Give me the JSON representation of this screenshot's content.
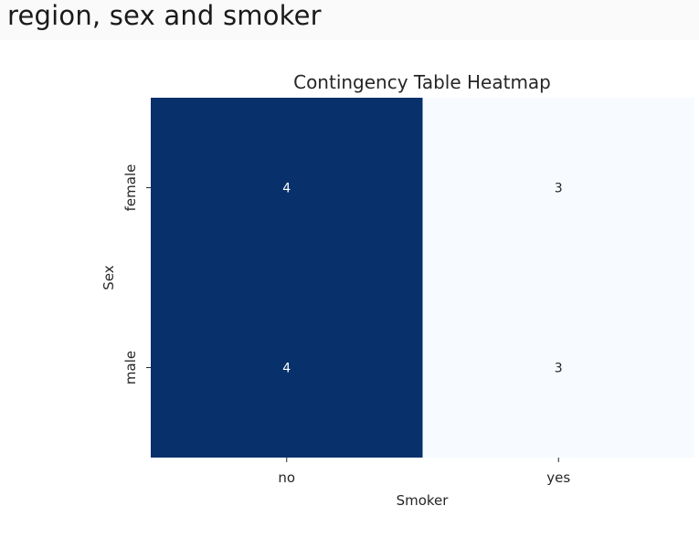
{
  "page": {
    "heading": "region, sex and smoker"
  },
  "chart_data": {
    "type": "heatmap",
    "title": "Contingency Table Heatmap",
    "xlabel": "Smoker",
    "ylabel": "Sex",
    "x_categories": [
      "no",
      "yes"
    ],
    "y_categories": [
      "female",
      "male"
    ],
    "values": [
      [
        4,
        3
      ],
      [
        4,
        3
      ]
    ],
    "colormap": "Blues",
    "color_low": "#f7fbff",
    "color_high": "#08306b",
    "annot_light_text": "#ffffff",
    "annot_dark_text": "#262626",
    "colorbar": false
  }
}
